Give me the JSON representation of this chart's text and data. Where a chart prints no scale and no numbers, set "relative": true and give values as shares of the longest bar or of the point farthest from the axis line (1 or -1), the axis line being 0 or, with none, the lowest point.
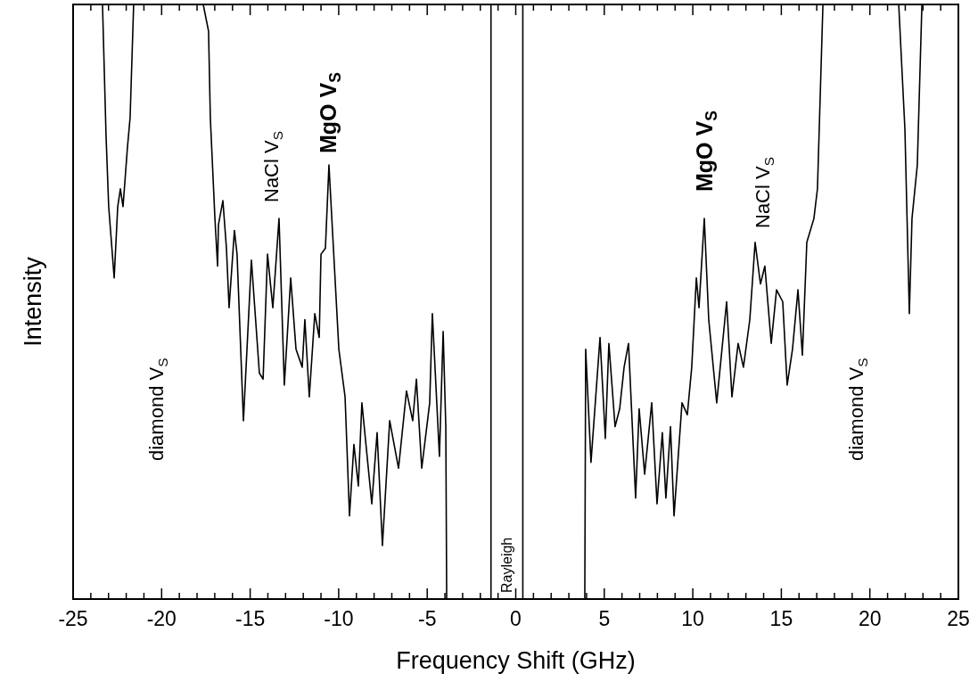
{
  "chart_data": {
    "type": "line",
    "xlabel": "Frequency Shift (GHz)",
    "ylabel": "Intensity",
    "relative": true,
    "xlim": [
      -25,
      25
    ],
    "xticks": [
      -25,
      {
        "value": -24,
        "label": null
      },
      {
        "value": -23,
        "label": null
      },
      {
        "value": -22,
        "label": null
      },
      {
        "value": -21,
        "label": null
      },
      -20,
      {
        "value": -19,
        "label": null
      },
      {
        "value": -18,
        "label": null
      },
      {
        "value": -17,
        "label": null
      },
      {
        "value": -16,
        "label": null
      },
      -15,
      {
        "value": -14,
        "label": null
      },
      {
        "value": -13,
        "label": null
      },
      {
        "value": -12,
        "label": null
      },
      {
        "value": -11,
        "label": null
      },
      -10,
      {
        "value": -9,
        "label": null
      },
      {
        "value": -8,
        "label": null
      },
      {
        "value": -7,
        "label": null
      },
      {
        "value": -6,
        "label": null
      },
      -5,
      {
        "value": -4,
        "label": null
      },
      {
        "value": -3,
        "label": null
      },
      {
        "value": -2,
        "label": null
      },
      {
        "value": -1,
        "label": null
      },
      0,
      {
        "value": 1,
        "label": null
      },
      {
        "value": 2,
        "label": null
      },
      {
        "value": 3,
        "label": null
      },
      {
        "value": 4,
        "label": null
      },
      5,
      {
        "value": 6,
        "label": null
      },
      {
        "value": 7,
        "label": null
      },
      {
        "value": 8,
        "label": null
      },
      {
        "value": 9,
        "label": null
      },
      10,
      {
        "value": 11,
        "label": null
      },
      {
        "value": 12,
        "label": null
      },
      {
        "value": 13,
        "label": null
      },
      {
        "value": 14,
        "label": null
      },
      15,
      {
        "value": 16,
        "label": null
      },
      {
        "value": 17,
        "label": null
      },
      {
        "value": 18,
        "label": null
      },
      {
        "value": 19,
        "label": null
      },
      20,
      {
        "value": 21,
        "label": null
      },
      {
        "value": 22,
        "label": null
      },
      {
        "value": 23,
        "label": null
      },
      {
        "value": 24,
        "label": null
      },
      25
    ],
    "grid": false,
    "marker": "none",
    "line_style": "solid",
    "series": [
      {
        "color": "#000000",
        "x": [
          -23.34,
          -23.14,
          -22.99,
          -22.68,
          -22.48,
          -22.33,
          -22.18,
          -21.93,
          -21.78,
          -21.58
        ],
        "values": [
          1.0,
          0.78,
          0.66,
          0.54,
          0.66,
          0.69,
          0.66,
          0.76,
          0.81,
          1.0
        ]
      },
      {
        "color": "#000000",
        "x": [
          -17.65,
          -17.35,
          -17.25,
          -16.99,
          -16.84,
          -16.79,
          -16.54,
          -16.34,
          -16.19,
          -15.89,
          -15.74,
          -15.38,
          -14.93,
          -14.48,
          -14.27,
          -14.02,
          -13.72,
          -13.37,
          -13.07,
          -12.71,
          -12.41,
          -12.06,
          -11.91,
          -11.66,
          -11.35,
          -11.1,
          -11.0,
          -10.75,
          -10.55,
          -9.99,
          -9.64,
          -9.39,
          -9.14,
          -8.89,
          -8.69,
          -8.13,
          -7.83,
          -7.53,
          -7.12,
          -6.62,
          -6.17,
          -5.82,
          -5.61,
          -5.31,
          -4.86,
          -4.71,
          -4.31,
          -4.1,
          -3.95,
          -3.9
        ],
        "values": [
          1.0,
          0.955,
          0.81,
          0.64,
          0.56,
          0.63,
          0.67,
          0.59,
          0.49,
          0.62,
          0.58,
          0.3,
          0.57,
          0.38,
          0.37,
          0.58,
          0.49,
          0.64,
          0.36,
          0.54,
          0.42,
          0.39,
          0.47,
          0.34,
          0.48,
          0.44,
          0.58,
          0.59,
          0.73,
          0.42,
          0.34,
          0.14,
          0.26,
          0.19,
          0.33,
          0.16,
          0.28,
          0.09,
          0.3,
          0.22,
          0.35,
          0.3,
          0.37,
          0.22,
          0.33,
          0.48,
          0.24,
          0.45,
          0.29,
          0.0
        ]
      },
      {
        "color": "#000000",
        "x": [
          3.9,
          3.95,
          4.25,
          4.76,
          5.06,
          5.26,
          5.61,
          5.87,
          6.12,
          6.37,
          6.77,
          6.97,
          7.28,
          7.68,
          7.98,
          8.28,
          8.48,
          8.74,
          8.94,
          9.39,
          9.69,
          9.94,
          10.2,
          10.35,
          10.65,
          10.9,
          11.35,
          11.91,
          12.21,
          12.56,
          12.86,
          13.22,
          13.52,
          13.82,
          14.07,
          14.43,
          14.73,
          15.08,
          15.33,
          15.63,
          15.94,
          16.19,
          16.44,
          16.84,
          17.04,
          17.35
        ],
        "values": [
          0.0,
          0.42,
          0.23,
          0.44,
          0.27,
          0.43,
          0.29,
          0.32,
          0.39,
          0.43,
          0.17,
          0.32,
          0.21,
          0.33,
          0.16,
          0.28,
          0.17,
          0.29,
          0.14,
          0.33,
          0.31,
          0.39,
          0.54,
          0.49,
          0.64,
          0.47,
          0.33,
          0.5,
          0.34,
          0.43,
          0.39,
          0.47,
          0.6,
          0.53,
          0.56,
          0.43,
          0.52,
          0.5,
          0.36,
          0.42,
          0.52,
          0.41,
          0.6,
          0.64,
          0.69,
          1.0
        ]
      },
      {
        "color": "#000000",
        "x": [
          21.63,
          21.98,
          22.23,
          22.38,
          22.68,
          22.94
        ],
        "values": [
          1.0,
          0.79,
          0.48,
          0.64,
          0.73,
          1.0
        ]
      }
    ],
    "ref_lines": [
      {
        "axis": "x",
        "value": -1.4,
        "color": "#000000"
      },
      {
        "axis": "x",
        "value": 0.4,
        "color": "#000000"
      }
    ],
    "annotations": [
      "diamond V$_{S}$",
      "NaCl V$_{S}$",
      "MgO V$_{S}$",
      "Rayleigh",
      "MgO V$_{S}$",
      "NaCl V$_{S}$",
      "diamond V$_{S}$"
    ]
  }
}
